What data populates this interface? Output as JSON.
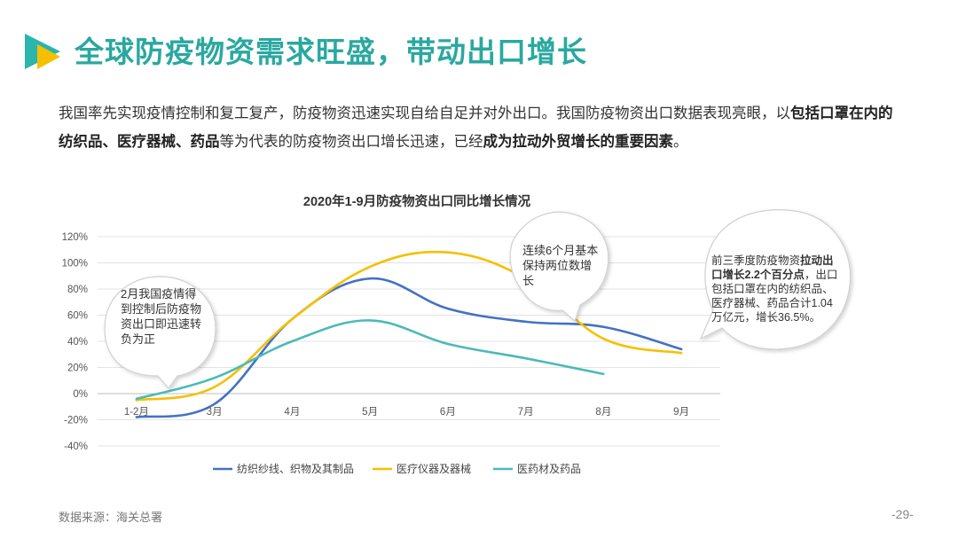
{
  "header": {
    "title": "全球防疫物资需求旺盛，带动出口增长"
  },
  "intro": [
    {
      "text": "我国率先实现疫情控制和复工复产，防疫物资迅速实现自给自足并对外出口。我国防疫物资出口数据表现亮眼，以",
      "bold": false
    },
    {
      "text": "包括口罩在内的纺织品、医疗器械、药品",
      "bold": true
    },
    {
      "text": "等为代表的防疫物资出口增长迅速，已经",
      "bold": false
    },
    {
      "text": "成为拉动外贸增长的重要因素",
      "bold": true
    },
    {
      "text": "。",
      "bold": false
    }
  ],
  "chart_data": {
    "type": "line",
    "title": "2020年1-9月防疫物资出口同比增长情况",
    "categories": [
      "1-2月",
      "3月",
      "4月",
      "5月",
      "6月",
      "7月",
      "8月",
      "9月"
    ],
    "y_ticks": [
      "120%",
      "100%",
      "80%",
      "60%",
      "40%",
      "20%",
      "0%",
      "-20%",
      "-40%"
    ],
    "ylim": [
      -40,
      120
    ],
    "y_unit": "%",
    "grid": true,
    "legend_position": "bottom",
    "series": [
      {
        "name": "纺织纱线、织物及其制品",
        "color": "#4472c4",
        "values": [
          -18,
          -8,
          57,
          88,
          65,
          55,
          51,
          34
        ]
      },
      {
        "name": "医疗仪器及器械",
        "color": "#f5c000",
        "values": [
          -5,
          5,
          57,
          97,
          108,
          88,
          42,
          31
        ]
      },
      {
        "name": "医药材及药品",
        "color": "#4bbab8",
        "values": [
          -4,
          12,
          40,
          56,
          38,
          27,
          15,
          null
        ]
      }
    ]
  },
  "annotations": {
    "note1": [
      {
        "text": "2月我国疫情得到控制后防疫物资出口即迅速转负为正",
        "bold": false
      }
    ],
    "note2": [
      {
        "text": "连续6个月基本保持两位数增长",
        "bold": false
      }
    ],
    "note3": [
      {
        "text": "前三季度防疫物资",
        "bold": false
      },
      {
        "text": "拉动出口增长2.2个百分点",
        "bold": true
      },
      {
        "text": "，出口包括口罩在内的纺织品、医疗器械、药品合计1.04万亿元，增长36.5%。",
        "bold": false
      }
    ]
  },
  "footer": {
    "source": "数据来源：海关总署",
    "page": "-29-"
  },
  "colors": {
    "title": "#2aa8a0",
    "logo_teal": "#2ab5ad",
    "logo_yellow": "#f5c000"
  }
}
